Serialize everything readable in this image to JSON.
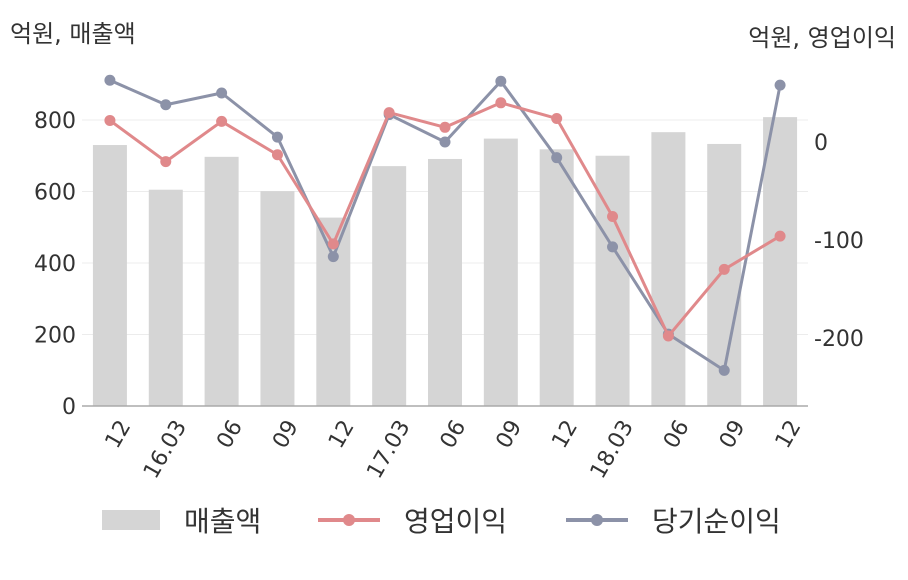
{
  "units": {
    "left": "억원, 매출액",
    "right": "억원, 영업이익"
  },
  "colors": {
    "bar": "#d5d5d5",
    "op": "#e0898b",
    "net": "#8c92a8",
    "axis": "#aaaaaa",
    "grid": "#ececec"
  },
  "chart_data": {
    "type": "bar+line",
    "categories": [
      "12",
      "16.03",
      "06",
      "09",
      "12",
      "17.03",
      "06",
      "09",
      "12",
      "18.03",
      "06",
      "09",
      "12"
    ],
    "series": [
      {
        "name": "매출액",
        "axis": "left",
        "kind": "bar",
        "values": [
          730,
          605,
          697,
          601,
          527,
          671,
          691,
          748,
          718,
          700,
          766,
          733,
          808
        ]
      },
      {
        "name": "영업이익",
        "axis": "right",
        "kind": "line",
        "values": [
          22,
          -20,
          21,
          -13,
          -104,
          30,
          15,
          40,
          24,
          -76,
          -198,
          -130,
          -96
        ]
      },
      {
        "name": "당기순이익",
        "axis": "right",
        "kind": "line",
        "values": [
          63,
          38,
          50,
          5,
          -117,
          28,
          0,
          62,
          -16,
          -107,
          -196,
          -233,
          58
        ]
      }
    ],
    "ylim_left": [
      0,
      900
    ],
    "yticks_left": [
      0,
      200,
      400,
      600,
      800
    ],
    "yticks_right": [
      0,
      -100,
      -200
    ],
    "legend": "bottom"
  }
}
